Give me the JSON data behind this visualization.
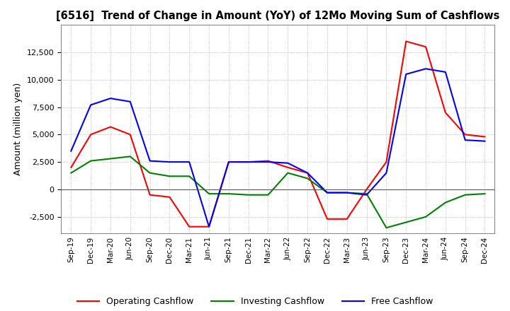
{
  "title": "[6516]  Trend of Change in Amount (YoY) of 12Mo Moving Sum of Cashflows",
  "ylabel": "Amount (million yen)",
  "x_labels": [
    "Sep-19",
    "Dec-19",
    "Mar-20",
    "Jun-20",
    "Sep-20",
    "Dec-20",
    "Mar-21",
    "Jun-21",
    "Sep-21",
    "Dec-21",
    "Mar-22",
    "Jun-22",
    "Sep-22",
    "Dec-22",
    "Mar-23",
    "Jun-23",
    "Sep-23",
    "Dec-23",
    "Mar-24",
    "Jun-24",
    "Sep-24",
    "Dec-24"
  ],
  "operating": [
    2000,
    5000,
    5700,
    5000,
    -500,
    -700,
    -3400,
    -3400,
    2500,
    2500,
    2600,
    2000,
    1500,
    -2700,
    -2700,
    0,
    2500,
    13500,
    13000,
    7000,
    5000,
    4800
  ],
  "investing": [
    1500,
    2600,
    2800,
    3000,
    1500,
    1200,
    1200,
    -400,
    -400,
    -500,
    -500,
    1500,
    1000,
    -300,
    -300,
    -400,
    -3500,
    -3000,
    -2500,
    -1200,
    -500,
    -400
  ],
  "free": [
    3500,
    7700,
    8300,
    8000,
    2600,
    2500,
    2500,
    -3400,
    2500,
    2500,
    2500,
    2400,
    1500,
    -300,
    -300,
    -500,
    1500,
    10500,
    11000,
    10700,
    4500,
    4400
  ],
  "ylim": [
    -4000,
    15000
  ],
  "yticks": [
    -2500,
    0,
    2500,
    5000,
    7500,
    10000,
    12500
  ],
  "colors": {
    "operating": "#FF0000",
    "investing": "#008000",
    "free": "#0000FF"
  },
  "grid_color": "#AAAAAA",
  "grid_style": "dotted",
  "bg_color": "#FFFFFF",
  "plot_bg_color": "#FFFFFF"
}
